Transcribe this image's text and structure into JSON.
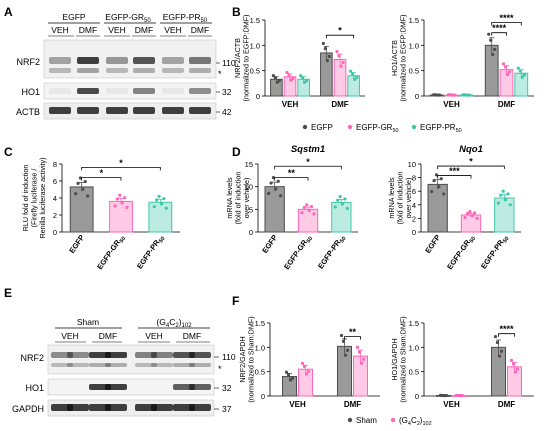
{
  "panel_letters": [
    "A",
    "B",
    "C",
    "D",
    "E",
    "F"
  ],
  "blot_A": {
    "groups": [
      "EGFP",
      "EGFP-GR50",
      "EGFP-PR50"
    ],
    "treatments": [
      "VEH",
      "DMF",
      "VEH",
      "DMF",
      "VEH",
      "DMF"
    ],
    "rows": [
      {
        "label": "NRF2",
        "mw": "110"
      },
      {
        "label": "HO1",
        "mw": "32"
      },
      {
        "label": "ACTB",
        "mw": "42"
      }
    ]
  },
  "blot_E": {
    "groups": [
      "Sham",
      "(G4C2)102"
    ],
    "treatments": [
      "VEH",
      "DMF",
      "VEH",
      "DMF"
    ],
    "rows": [
      {
        "label": "NRF2",
        "mw": "110"
      },
      {
        "label": "HO1",
        "mw": "32"
      },
      {
        "label": "GAPDH",
        "mw": "37"
      }
    ]
  },
  "legend_B": [
    "EGFP",
    "EGFP-GR50",
    "EGFP-PR50"
  ],
  "legend_F": [
    "Sham",
    "(G4C2)102"
  ],
  "colors": {
    "egfp": "#4d4d4d",
    "gr": "#ff66b8",
    "pr": "#3fc8a8",
    "sham": "#4d4d4d",
    "g4c2": "#ff66b8"
  },
  "chart_data": [
    {
      "id": "B1",
      "type": "bar",
      "ylabel": "NRF2/ACTB (normalized to EGFP:DMF)",
      "ylim": [
        0,
        1.5
      ],
      "yticks": [
        0,
        0.5,
        1.0,
        1.5
      ],
      "categories": [
        "VEH",
        "DMF"
      ],
      "series": [
        {
          "name": "EGFP",
          "values": [
            0.33,
            0.85
          ]
        },
        {
          "name": "EGFP-GR50",
          "values": [
            0.38,
            0.72
          ]
        },
        {
          "name": "EGFP-PR50",
          "values": [
            0.33,
            0.4
          ]
        }
      ],
      "significance": [
        "*"
      ]
    },
    {
      "id": "B2",
      "type": "bar",
      "ylabel": "HO1/ACTB (normalized to EGFP:DMF)",
      "ylim": [
        0,
        1.5
      ],
      "yticks": [
        0,
        0.5,
        1.0,
        1.5
      ],
      "categories": [
        "VEH",
        "DMF"
      ],
      "series": [
        {
          "name": "EGFP",
          "values": [
            0.02,
            1.0
          ]
        },
        {
          "name": "EGFP-GR50",
          "values": [
            0.02,
            0.52
          ]
        },
        {
          "name": "EGFP-PR50",
          "values": [
            0.02,
            0.45
          ]
        }
      ],
      "significance": [
        "****",
        "****"
      ]
    },
    {
      "id": "C",
      "type": "bar",
      "ylabel": "RLU fold of induction (Firefly luciferase / Renilla luciferase activity)",
      "ylim": [
        0,
        8
      ],
      "yticks": [
        0,
        2,
        4,
        6,
        8
      ],
      "categories": [
        "EGFP",
        "EGFP-GR50",
        "EGFP-PR50"
      ],
      "values": [
        5.3,
        3.6,
        3.5
      ],
      "significance": [
        "*",
        "*"
      ]
    },
    {
      "id": "D1",
      "type": "bar",
      "title": "Sqstm1",
      "ylabel": "mRNA levels (fold of induction over vehicle)",
      "ylim": [
        0,
        15
      ],
      "yticks": [
        0,
        5,
        10,
        15
      ],
      "categories": [
        "EGFP",
        "EGFP-GR50",
        "EGFP-PR50"
      ],
      "values": [
        10.0,
        5.0,
        6.5
      ],
      "significance": [
        "**",
        "*"
      ]
    },
    {
      "id": "D2",
      "type": "bar",
      "title": "Nqo1",
      "ylabel": "mRNA levels (fold of induction over vehicle)",
      "ylim": [
        0,
        10
      ],
      "yticks": [
        0,
        2,
        4,
        6,
        8,
        10
      ],
      "categories": [
        "EGFP",
        "EGFP-GR50",
        "EGFP-PR50"
      ],
      "values": [
        7.0,
        2.5,
        5.0
      ],
      "significance": [
        "***",
        "*"
      ]
    },
    {
      "id": "F1",
      "type": "bar",
      "ylabel": "NRF2/GAPDH (normalized to Sham:DMF)",
      "ylim": [
        0,
        1.5
      ],
      "yticks": [
        0,
        0.5,
        1.0,
        1.5
      ],
      "categories": [
        "VEH",
        "DMF"
      ],
      "series": [
        {
          "name": "Sham",
          "values": [
            0.4,
            1.02
          ]
        },
        {
          "name": "(G4C2)102",
          "values": [
            0.55,
            0.82
          ]
        }
      ],
      "significance": [
        "**"
      ]
    },
    {
      "id": "F2",
      "type": "bar",
      "ylabel": "HO1/GAPDH (normalized to Sham:DMF)",
      "ylim": [
        0,
        1.5
      ],
      "yticks": [
        0,
        0.5,
        1.0,
        1.5
      ],
      "categories": [
        "VEH",
        "DMF"
      ],
      "series": [
        {
          "name": "Sham",
          "values": [
            0.01,
            1.0
          ]
        },
        {
          "name": "(G4C2)102",
          "values": [
            0.01,
            0.6
          ]
        }
      ],
      "significance": [
        "****"
      ]
    }
  ]
}
